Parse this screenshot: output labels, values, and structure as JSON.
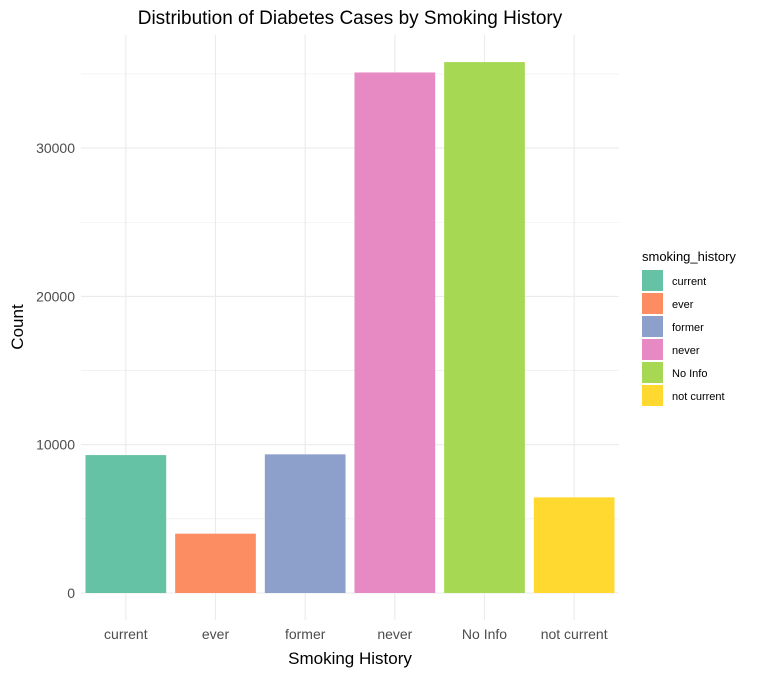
{
  "chart_data": {
    "type": "bar",
    "title": "Distribution of Diabetes Cases by Smoking History",
    "xlabel": "Smoking History",
    "ylabel": "Count",
    "categories": [
      "current",
      "ever",
      "former",
      "never",
      "No Info",
      "not current"
    ],
    "values": [
      9300,
      4000,
      9350,
      35100,
      35800,
      6450
    ],
    "colors": [
      "#66c2a5",
      "#fc8d62",
      "#8da0cb",
      "#e78ac3",
      "#a6d854",
      "#ffd92f"
    ],
    "ylim": [
      0,
      37000
    ],
    "yticks": [
      0,
      10000,
      20000,
      30000
    ],
    "ytick_labels": [
      "0",
      "10000",
      "20000",
      "30000"
    ],
    "yminor": [
      5000,
      15000,
      25000,
      35000
    ],
    "grid": true,
    "legend": {
      "title": "smoking_history",
      "position": "right",
      "entries": [
        "current",
        "ever",
        "former",
        "never",
        "No Info",
        "not current"
      ]
    }
  }
}
